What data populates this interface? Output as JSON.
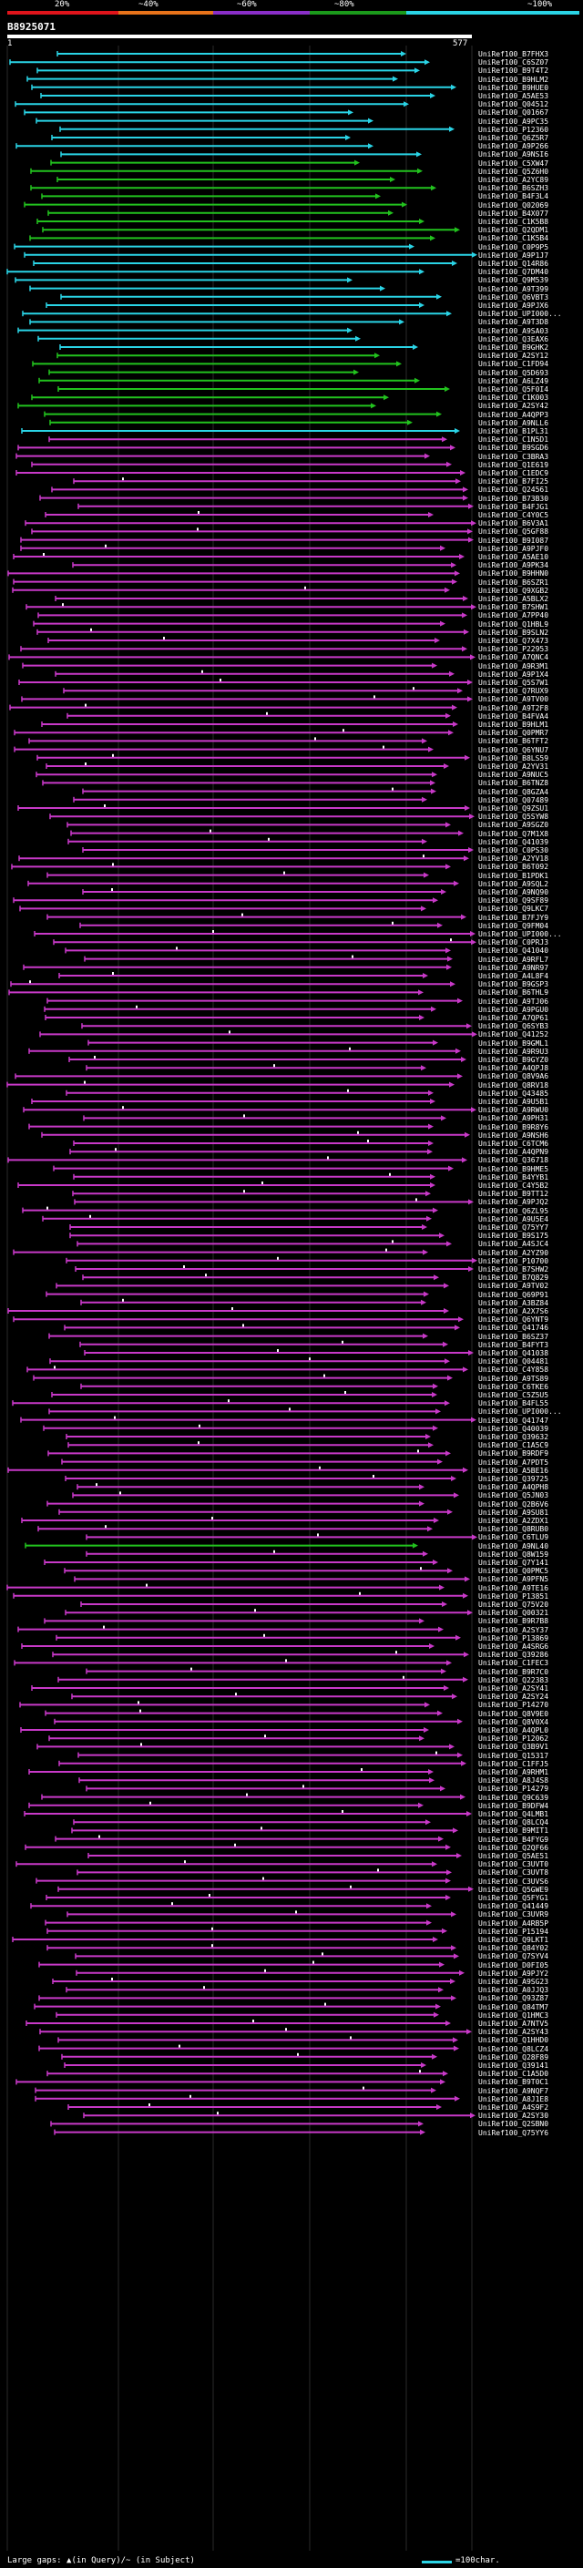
{
  "header": {
    "query_id": "B8925071",
    "query_start": "1",
    "query_end": "577",
    "scale": [
      {
        "label": "20%",
        "color": "#e0141b"
      },
      {
        "label": "~40%",
        "color": "#e8731a"
      },
      {
        "label": "~60%",
        "color": "#8a2ec8"
      },
      {
        "label": "~80%",
        "color": "#1b9a1b"
      },
      {
        "label": "~100%",
        "color": "#2ad4e6"
      }
    ]
  },
  "colors": {
    "cyan": "#2ad4e6",
    "green": "#22c21e",
    "magenta": "#c839c8",
    "background": "#000000"
  },
  "hits": [
    {
      "id": "UniRef100_B7FHX3",
      "c": "cyan"
    },
    {
      "id": "UniRef100_C6SZ07",
      "c": "cyan"
    },
    {
      "id": "UniRef100_B9T4T2",
      "c": "cyan"
    },
    {
      "id": "UniRef100_B9HLM2",
      "c": "cyan"
    },
    {
      "id": "UniRef100_B9HUE0",
      "c": "cyan"
    },
    {
      "id": "UniRef100_A5AE53",
      "c": "cyan"
    },
    {
      "id": "UniRef100_Q04512",
      "c": "cyan"
    },
    {
      "id": "UniRef100_Q01667",
      "c": "cyan"
    },
    {
      "id": "UniRef100_A9PC35",
      "c": "cyan"
    },
    {
      "id": "UniRef100_P12360",
      "c": "cyan"
    },
    {
      "id": "UniRef100_Q6Z5R7",
      "c": "cyan"
    },
    {
      "id": "UniRef100_A9P266",
      "c": "cyan"
    },
    {
      "id": "UniRef100_A9NSI6",
      "c": "cyan"
    },
    {
      "id": "UniRef100_C5XW47",
      "c": "green"
    },
    {
      "id": "UniRef100_Q5Z6H0",
      "c": "green"
    },
    {
      "id": "UniRef100_A2YC89",
      "c": "green"
    },
    {
      "id": "UniRef100_B6SZH3",
      "c": "green"
    },
    {
      "id": "UniRef100_B4F3L4",
      "c": "green"
    },
    {
      "id": "UniRef100_Q02069",
      "c": "green"
    },
    {
      "id": "UniRef100_B4X077",
      "c": "green"
    },
    {
      "id": "UniRef100_C1K5B8",
      "c": "green"
    },
    {
      "id": "UniRef100_Q2QDM1",
      "c": "green"
    },
    {
      "id": "UniRef100_C1K5B4",
      "c": "green"
    },
    {
      "id": "UniRef100_C0P9P5",
      "c": "cyan"
    },
    {
      "id": "UniRef100_A9P1J7",
      "c": "cyan"
    },
    {
      "id": "UniRef100_Q14R86",
      "c": "cyan"
    },
    {
      "id": "UniRef100_Q7DM40",
      "c": "cyan"
    },
    {
      "id": "UniRef100_Q9M539",
      "c": "cyan"
    },
    {
      "id": "UniRef100_A9T399",
      "c": "cyan"
    },
    {
      "id": "UniRef100_Q6VBT3",
      "c": "cyan"
    },
    {
      "id": "UniRef100_A9PJX6",
      "c": "cyan"
    },
    {
      "id": "UniRef100_UPI000...",
      "c": "cyan"
    },
    {
      "id": "UniRef100_A9T3D8",
      "c": "cyan"
    },
    {
      "id": "UniRef100_A9SA03",
      "c": "cyan"
    },
    {
      "id": "UniRef100_Q3EAX6",
      "c": "cyan"
    },
    {
      "id": "UniRef100_B9GHK2",
      "c": "cyan"
    },
    {
      "id": "UniRef100_A2SY12",
      "c": "green"
    },
    {
      "id": "UniRef100_C1FD94",
      "c": "green"
    },
    {
      "id": "UniRef100_Q5D693",
      "c": "green"
    },
    {
      "id": "UniRef100_A6LZ49",
      "c": "green"
    },
    {
      "id": "UniRef100_Q5F0I4",
      "c": "green"
    },
    {
      "id": "UniRef100_C1K003",
      "c": "green"
    },
    {
      "id": "UniRef100_A2SY42",
      "c": "green"
    },
    {
      "id": "UniRef100_A4QPP3",
      "c": "green"
    },
    {
      "id": "UniRef100_A9NLL6",
      "c": "green"
    },
    {
      "id": "UniRef100_B1PL31",
      "c": "cyan"
    },
    {
      "id": "UniRef100_C1N5D1",
      "c": "magenta"
    },
    {
      "id": "UniRef100_B9SGD6",
      "c": "magenta"
    },
    {
      "id": "UniRef100_C3BRA3",
      "c": "magenta"
    },
    {
      "id": "UniRef100_Q1E619",
      "c": "magenta"
    },
    {
      "id": "UniRef100_C1EDC9",
      "c": "magenta"
    },
    {
      "id": "UniRef100_B7FI25",
      "c": "magenta"
    },
    {
      "id": "UniRef100_Q24561",
      "c": "magenta"
    },
    {
      "id": "UniRef100_B73B30",
      "c": "magenta"
    },
    {
      "id": "UniRef100_B4FJG1",
      "c": "magenta"
    },
    {
      "id": "UniRef100_C4Y0C5",
      "c": "magenta"
    },
    {
      "id": "UniRef100_B6V3A1",
      "c": "magenta"
    },
    {
      "id": "UniRef100_Q5GF88",
      "c": "magenta"
    },
    {
      "id": "UniRef100_B9I087",
      "c": "magenta"
    },
    {
      "id": "UniRef100_A9PJF0",
      "c": "magenta"
    },
    {
      "id": "UniRef100_A5AE10",
      "c": "magenta"
    },
    {
      "id": "UniRef100_A9PK34",
      "c": "magenta"
    },
    {
      "id": "UniRef100_B9HHN0",
      "c": "magenta"
    },
    {
      "id": "UniRef100_B6SZR1",
      "c": "magenta"
    },
    {
      "id": "UniRef100_Q9XGB2",
      "c": "magenta"
    },
    {
      "id": "UniRef100_A5BLX2",
      "c": "magenta"
    },
    {
      "id": "UniRef100_B7SHW1",
      "c": "magenta"
    },
    {
      "id": "UniRef100_A7PP40",
      "c": "magenta"
    },
    {
      "id": "UniRef100_Q1HBL9",
      "c": "magenta"
    },
    {
      "id": "UniRef100_B9SLN2",
      "c": "magenta"
    },
    {
      "id": "UniRef100_Q7X473",
      "c": "magenta"
    },
    {
      "id": "UniRef100_P22953",
      "c": "magenta"
    },
    {
      "id": "UniRef100_A7QNC4",
      "c": "magenta"
    },
    {
      "id": "UniRef100_A9R3M1",
      "c": "magenta"
    },
    {
      "id": "UniRef100_A9P1X4",
      "c": "magenta"
    },
    {
      "id": "UniRef100_Q5S7W1",
      "c": "magenta"
    },
    {
      "id": "UniRef100_Q7RUX9",
      "c": "magenta"
    },
    {
      "id": "UniRef100_A9TV00",
      "c": "magenta"
    },
    {
      "id": "UniRef100_A9T2F8",
      "c": "magenta"
    },
    {
      "id": "UniRef100_B4FVA4",
      "c": "magenta"
    },
    {
      "id": "UniRef100_B9HLM1",
      "c": "magenta"
    },
    {
      "id": "UniRef100_Q0PMR7",
      "c": "magenta"
    },
    {
      "id": "UniRef100_B6TFT2",
      "c": "magenta"
    },
    {
      "id": "UniRef100_Q6YNU7",
      "c": "magenta"
    },
    {
      "id": "UniRef100_B8LS59",
      "c": "magenta"
    },
    {
      "id": "UniRef100_A2YV31",
      "c": "magenta"
    },
    {
      "id": "UniRef100_A9NUC5",
      "c": "magenta"
    },
    {
      "id": "UniRef100_B6TNZ8",
      "c": "magenta"
    },
    {
      "id": "UniRef100_Q8GZA4",
      "c": "magenta"
    },
    {
      "id": "UniRef100_Q07489",
      "c": "magenta"
    },
    {
      "id": "UniRef100_Q9ZSU1",
      "c": "magenta"
    },
    {
      "id": "UniRef100_Q5SYW8",
      "c": "magenta"
    },
    {
      "id": "UniRef100_A9SGZ0",
      "c": "magenta"
    },
    {
      "id": "UniRef100_Q7M1X8",
      "c": "magenta"
    },
    {
      "id": "UniRef100_Q41039",
      "c": "magenta"
    },
    {
      "id": "UniRef100_C0PS30",
      "c": "magenta"
    },
    {
      "id": "UniRef100_A2YV18",
      "c": "magenta"
    },
    {
      "id": "UniRef100_B6T092",
      "c": "magenta"
    },
    {
      "id": "UniRef100_B1PDK1",
      "c": "magenta"
    },
    {
      "id": "UniRef100_A9SQL2",
      "c": "magenta"
    },
    {
      "id": "UniRef100_A9NQ90",
      "c": "magenta"
    },
    {
      "id": "UniRef100_Q9SF89",
      "c": "magenta"
    },
    {
      "id": "UniRef100_Q9LKC7",
      "c": "magenta"
    },
    {
      "id": "UniRef100_B7FJY9",
      "c": "magenta"
    },
    {
      "id": "UniRef100_Q9FM04",
      "c": "magenta"
    },
    {
      "id": "UniRef100_UPI000...",
      "c": "magenta"
    },
    {
      "id": "UniRef100_C0PRJ3",
      "c": "magenta"
    },
    {
      "id": "UniRef100_Q41040",
      "c": "magenta"
    },
    {
      "id": "UniRef100_A9RFL7",
      "c": "magenta"
    },
    {
      "id": "UniRef100_A9NR97",
      "c": "magenta"
    },
    {
      "id": "UniRef100_A4L8F4",
      "c": "magenta"
    },
    {
      "id": "UniRef100_B9GSP3",
      "c": "magenta"
    },
    {
      "id": "UniRef100_B6THL9",
      "c": "magenta"
    },
    {
      "id": "UniRef100_A9TJ06",
      "c": "magenta"
    },
    {
      "id": "UniRef100_A9PGU0",
      "c": "magenta"
    },
    {
      "id": "UniRef100_A7QP61",
      "c": "magenta"
    },
    {
      "id": "UniRef100_Q6SYB3",
      "c": "magenta"
    },
    {
      "id": "UniRef100_Q41252",
      "c": "magenta"
    },
    {
      "id": "UniRef100_B9GML1",
      "c": "magenta"
    },
    {
      "id": "UniRef100_A9R9U3",
      "c": "magenta"
    },
    {
      "id": "UniRef100_B9GYZ0",
      "c": "magenta"
    },
    {
      "id": "UniRef100_A4QPJ8",
      "c": "magenta"
    },
    {
      "id": "UniRef100_Q8V9A6",
      "c": "magenta"
    },
    {
      "id": "UniRef100_Q8RV18",
      "c": "magenta"
    },
    {
      "id": "UniRef100_Q43485",
      "c": "magenta"
    },
    {
      "id": "UniRef100_A9U5B1",
      "c": "magenta"
    },
    {
      "id": "UniRef100_A9RWU0",
      "c": "magenta"
    },
    {
      "id": "UniRef100_A9PH31",
      "c": "magenta"
    },
    {
      "id": "UniRef100_B9R8Y6",
      "c": "magenta"
    },
    {
      "id": "UniRef100_A9NSH6",
      "c": "magenta"
    },
    {
      "id": "UniRef100_C6TCM6",
      "c": "magenta"
    },
    {
      "id": "UniRef100_A4QPN9",
      "c": "magenta"
    },
    {
      "id": "UniRef100_Q36718",
      "c": "magenta"
    },
    {
      "id": "UniRef100_B9HME5",
      "c": "magenta"
    },
    {
      "id": "UniRef100_B4YYB1",
      "c": "magenta"
    },
    {
      "id": "UniRef100_C4Y5B2",
      "c": "magenta"
    },
    {
      "id": "UniRef100_B9TT12",
      "c": "magenta"
    },
    {
      "id": "UniRef100_A9PJQ2",
      "c": "magenta"
    },
    {
      "id": "UniRef100_Q6ZL95",
      "c": "magenta"
    },
    {
      "id": "UniRef100_A9U5E4",
      "c": "magenta"
    },
    {
      "id": "UniRef100_Q75YY7",
      "c": "magenta"
    },
    {
      "id": "UniRef100_B9S175",
      "c": "magenta"
    },
    {
      "id": "UniRef100_A4SJC4",
      "c": "magenta"
    },
    {
      "id": "UniRef100_A2YZ90",
      "c": "magenta"
    },
    {
      "id": "UniRef100_P10700",
      "c": "magenta"
    },
    {
      "id": "UniRef100_B7SHW2",
      "c": "magenta"
    },
    {
      "id": "UniRef100_B7Q829",
      "c": "magenta"
    },
    {
      "id": "UniRef100_A9TV02",
      "c": "magenta"
    },
    {
      "id": "UniRef100_Q69P91",
      "c": "magenta"
    },
    {
      "id": "UniRef100_A3BZ84",
      "c": "magenta"
    },
    {
      "id": "UniRef100_A2X7S6",
      "c": "magenta"
    },
    {
      "id": "UniRef100_Q6YNT9",
      "c": "magenta"
    },
    {
      "id": "UniRef100_Q41746",
      "c": "magenta"
    },
    {
      "id": "UniRef100_B6SZ37",
      "c": "magenta"
    },
    {
      "id": "UniRef100_B4FYT3",
      "c": "magenta"
    },
    {
      "id": "UniRef100_Q41038",
      "c": "magenta"
    },
    {
      "id": "UniRef100_Q04481",
      "c": "magenta"
    },
    {
      "id": "UniRef100_C4Y858",
      "c": "magenta"
    },
    {
      "id": "UniRef100_A9TS89",
      "c": "magenta"
    },
    {
      "id": "UniRef100_C6TKE6",
      "c": "magenta"
    },
    {
      "id": "UniRef100_C5Z5U5",
      "c": "magenta"
    },
    {
      "id": "UniRef100_B4FL55",
      "c": "magenta"
    },
    {
      "id": "UniRef100_UPI000...",
      "c": "magenta"
    },
    {
      "id": "UniRef100_Q41747",
      "c": "magenta"
    },
    {
      "id": "UniRef100_Q40039",
      "c": "magenta"
    },
    {
      "id": "UniRef100_Q39632",
      "c": "magenta"
    },
    {
      "id": "UniRef100_C1A5C9",
      "c": "magenta"
    },
    {
      "id": "UniRef100_B9RDF9",
      "c": "magenta"
    },
    {
      "id": "UniRef100_A7PDT5",
      "c": "magenta"
    },
    {
      "id": "UniRef100_A5BE16",
      "c": "magenta"
    },
    {
      "id": "UniRef100_Q39725",
      "c": "magenta"
    },
    {
      "id": "UniRef100_A4QPH8",
      "c": "magenta"
    },
    {
      "id": "UniRef100_Q5JN03",
      "c": "magenta"
    },
    {
      "id": "UniRef100_Q2B6V6",
      "c": "magenta"
    },
    {
      "id": "UniRef100_A9SU81",
      "c": "magenta"
    },
    {
      "id": "UniRef100_A2ZDX1",
      "c": "magenta"
    },
    {
      "id": "UniRef100_Q8RUB0",
      "c": "magenta"
    },
    {
      "id": "UniRef100_C6TLU9",
      "c": "magenta"
    },
    {
      "id": "UniRef100_A9NL40",
      "c": "green"
    },
    {
      "id": "UniRef100_Q8W159",
      "c": "magenta"
    },
    {
      "id": "UniRef100_Q7Y141",
      "c": "magenta"
    },
    {
      "id": "UniRef100_Q0PMC5",
      "c": "magenta"
    },
    {
      "id": "UniRef100_A9PFN5",
      "c": "magenta"
    },
    {
      "id": "UniRef100_A9TE16",
      "c": "magenta"
    },
    {
      "id": "UniRef100_P13851",
      "c": "magenta"
    },
    {
      "id": "UniRef100_Q75V20",
      "c": "magenta"
    },
    {
      "id": "UniRef100_Q00321",
      "c": "magenta"
    },
    {
      "id": "UniRef100_B9R7B8",
      "c": "magenta"
    },
    {
      "id": "UniRef100_A2SY37",
      "c": "magenta"
    },
    {
      "id": "UniRef100_P13869",
      "c": "magenta"
    },
    {
      "id": "UniRef100_A4SRG6",
      "c": "magenta"
    },
    {
      "id": "UniRef100_Q39286",
      "c": "magenta"
    },
    {
      "id": "UniRef100_C1FEC3",
      "c": "magenta"
    },
    {
      "id": "UniRef100_B9R7C0",
      "c": "magenta"
    },
    {
      "id": "UniRef100_Q22383",
      "c": "magenta"
    },
    {
      "id": "UniRef100_A2SY41",
      "c": "magenta"
    },
    {
      "id": "UniRef100_A2SY24",
      "c": "magenta"
    },
    {
      "id": "UniRef100_P14270",
      "c": "magenta"
    },
    {
      "id": "UniRef100_Q8V9E0",
      "c": "magenta"
    },
    {
      "id": "UniRef100_Q8V0X4",
      "c": "magenta"
    },
    {
      "id": "UniRef100_A4QPL0",
      "c": "magenta"
    },
    {
      "id": "UniRef100_P12062",
      "c": "magenta"
    },
    {
      "id": "UniRef100_Q3B9V1",
      "c": "magenta"
    },
    {
      "id": "UniRef100_Q15317",
      "c": "magenta"
    },
    {
      "id": "UniRef100_C1FFJ5",
      "c": "magenta"
    },
    {
      "id": "UniRef100_A9RHM1",
      "c": "magenta"
    },
    {
      "id": "UniRef100_A8J4S8",
      "c": "magenta"
    },
    {
      "id": "UniRef100_P14279",
      "c": "magenta"
    },
    {
      "id": "UniRef100_Q9C639",
      "c": "magenta"
    },
    {
      "id": "UniRef100_B9DFW4",
      "c": "magenta"
    },
    {
      "id": "UniRef100_Q4LMB1",
      "c": "magenta"
    },
    {
      "id": "UniRef100_Q8LCQ4",
      "c": "magenta"
    },
    {
      "id": "UniRef100_B9MIT1",
      "c": "magenta"
    },
    {
      "id": "UniRef100_B4FYG9",
      "c": "magenta"
    },
    {
      "id": "UniRef100_Q2QF66",
      "c": "magenta"
    },
    {
      "id": "UniRef100_Q5AE51",
      "c": "magenta"
    },
    {
      "id": "UniRef100_C3UVT0",
      "c": "magenta"
    },
    {
      "id": "UniRef100_C3UVT8",
      "c": "magenta"
    },
    {
      "id": "UniRef100_C3UVS6",
      "c": "magenta"
    },
    {
      "id": "UniRef100_Q5GWE9",
      "c": "magenta"
    },
    {
      "id": "UniRef100_Q5FYG1",
      "c": "magenta"
    },
    {
      "id": "UniRef100_Q41449",
      "c": "magenta"
    },
    {
      "id": "UniRef100_C3UVR9",
      "c": "magenta"
    },
    {
      "id": "UniRef100_A4RB5P",
      "c": "magenta"
    },
    {
      "id": "UniRef100_P15194",
      "c": "magenta"
    },
    {
      "id": "UniRef100_Q9LKT1",
      "c": "magenta"
    },
    {
      "id": "UniRef100_Q84Y02",
      "c": "magenta"
    },
    {
      "id": "UniRef100_Q7SYV4",
      "c": "magenta"
    },
    {
      "id": "UniRef100_D0FI05",
      "c": "magenta"
    },
    {
      "id": "UniRef100_A9PJY2",
      "c": "magenta"
    },
    {
      "id": "UniRef100_A9SG23",
      "c": "magenta"
    },
    {
      "id": "UniRef100_A0JJQ3",
      "c": "magenta"
    },
    {
      "id": "UniRef100_Q93Z87",
      "c": "magenta"
    },
    {
      "id": "UniRef100_Q84TM7",
      "c": "magenta"
    },
    {
      "id": "UniRef100_Q1HMC3",
      "c": "magenta"
    },
    {
      "id": "UniRef100_A7NTV5",
      "c": "magenta"
    },
    {
      "id": "UniRef100_A2SY43",
      "c": "magenta"
    },
    {
      "id": "UniRef100_Q1HHD0",
      "c": "magenta"
    },
    {
      "id": "UniRef100_Q8LCZ4",
      "c": "magenta"
    },
    {
      "id": "UniRef100_Q28F89",
      "c": "magenta"
    },
    {
      "id": "UniRef100_Q39141",
      "c": "magenta"
    },
    {
      "id": "UniRef100_C1A5D0",
      "c": "magenta"
    },
    {
      "id": "UniRef100_B9T0C1",
      "c": "magenta"
    },
    {
      "id": "UniRef100_A9NQF7",
      "c": "magenta"
    },
    {
      "id": "UniRef100_A8J1E8",
      "c": "magenta"
    },
    {
      "id": "UniRef100_A4S9F2",
      "c": "magenta"
    },
    {
      "id": "UniRef100_A2SY30",
      "c": "magenta"
    },
    {
      "id": "UniRef100_Q2SBN0",
      "c": "magenta"
    },
    {
      "id": "UniRef100_Q75YY6",
      "c": "magenta"
    }
  ],
  "footer": {
    "legend_left": "Large gaps: ▲(in Query)/~ (in Subject)",
    "legend_right": "=100char."
  }
}
